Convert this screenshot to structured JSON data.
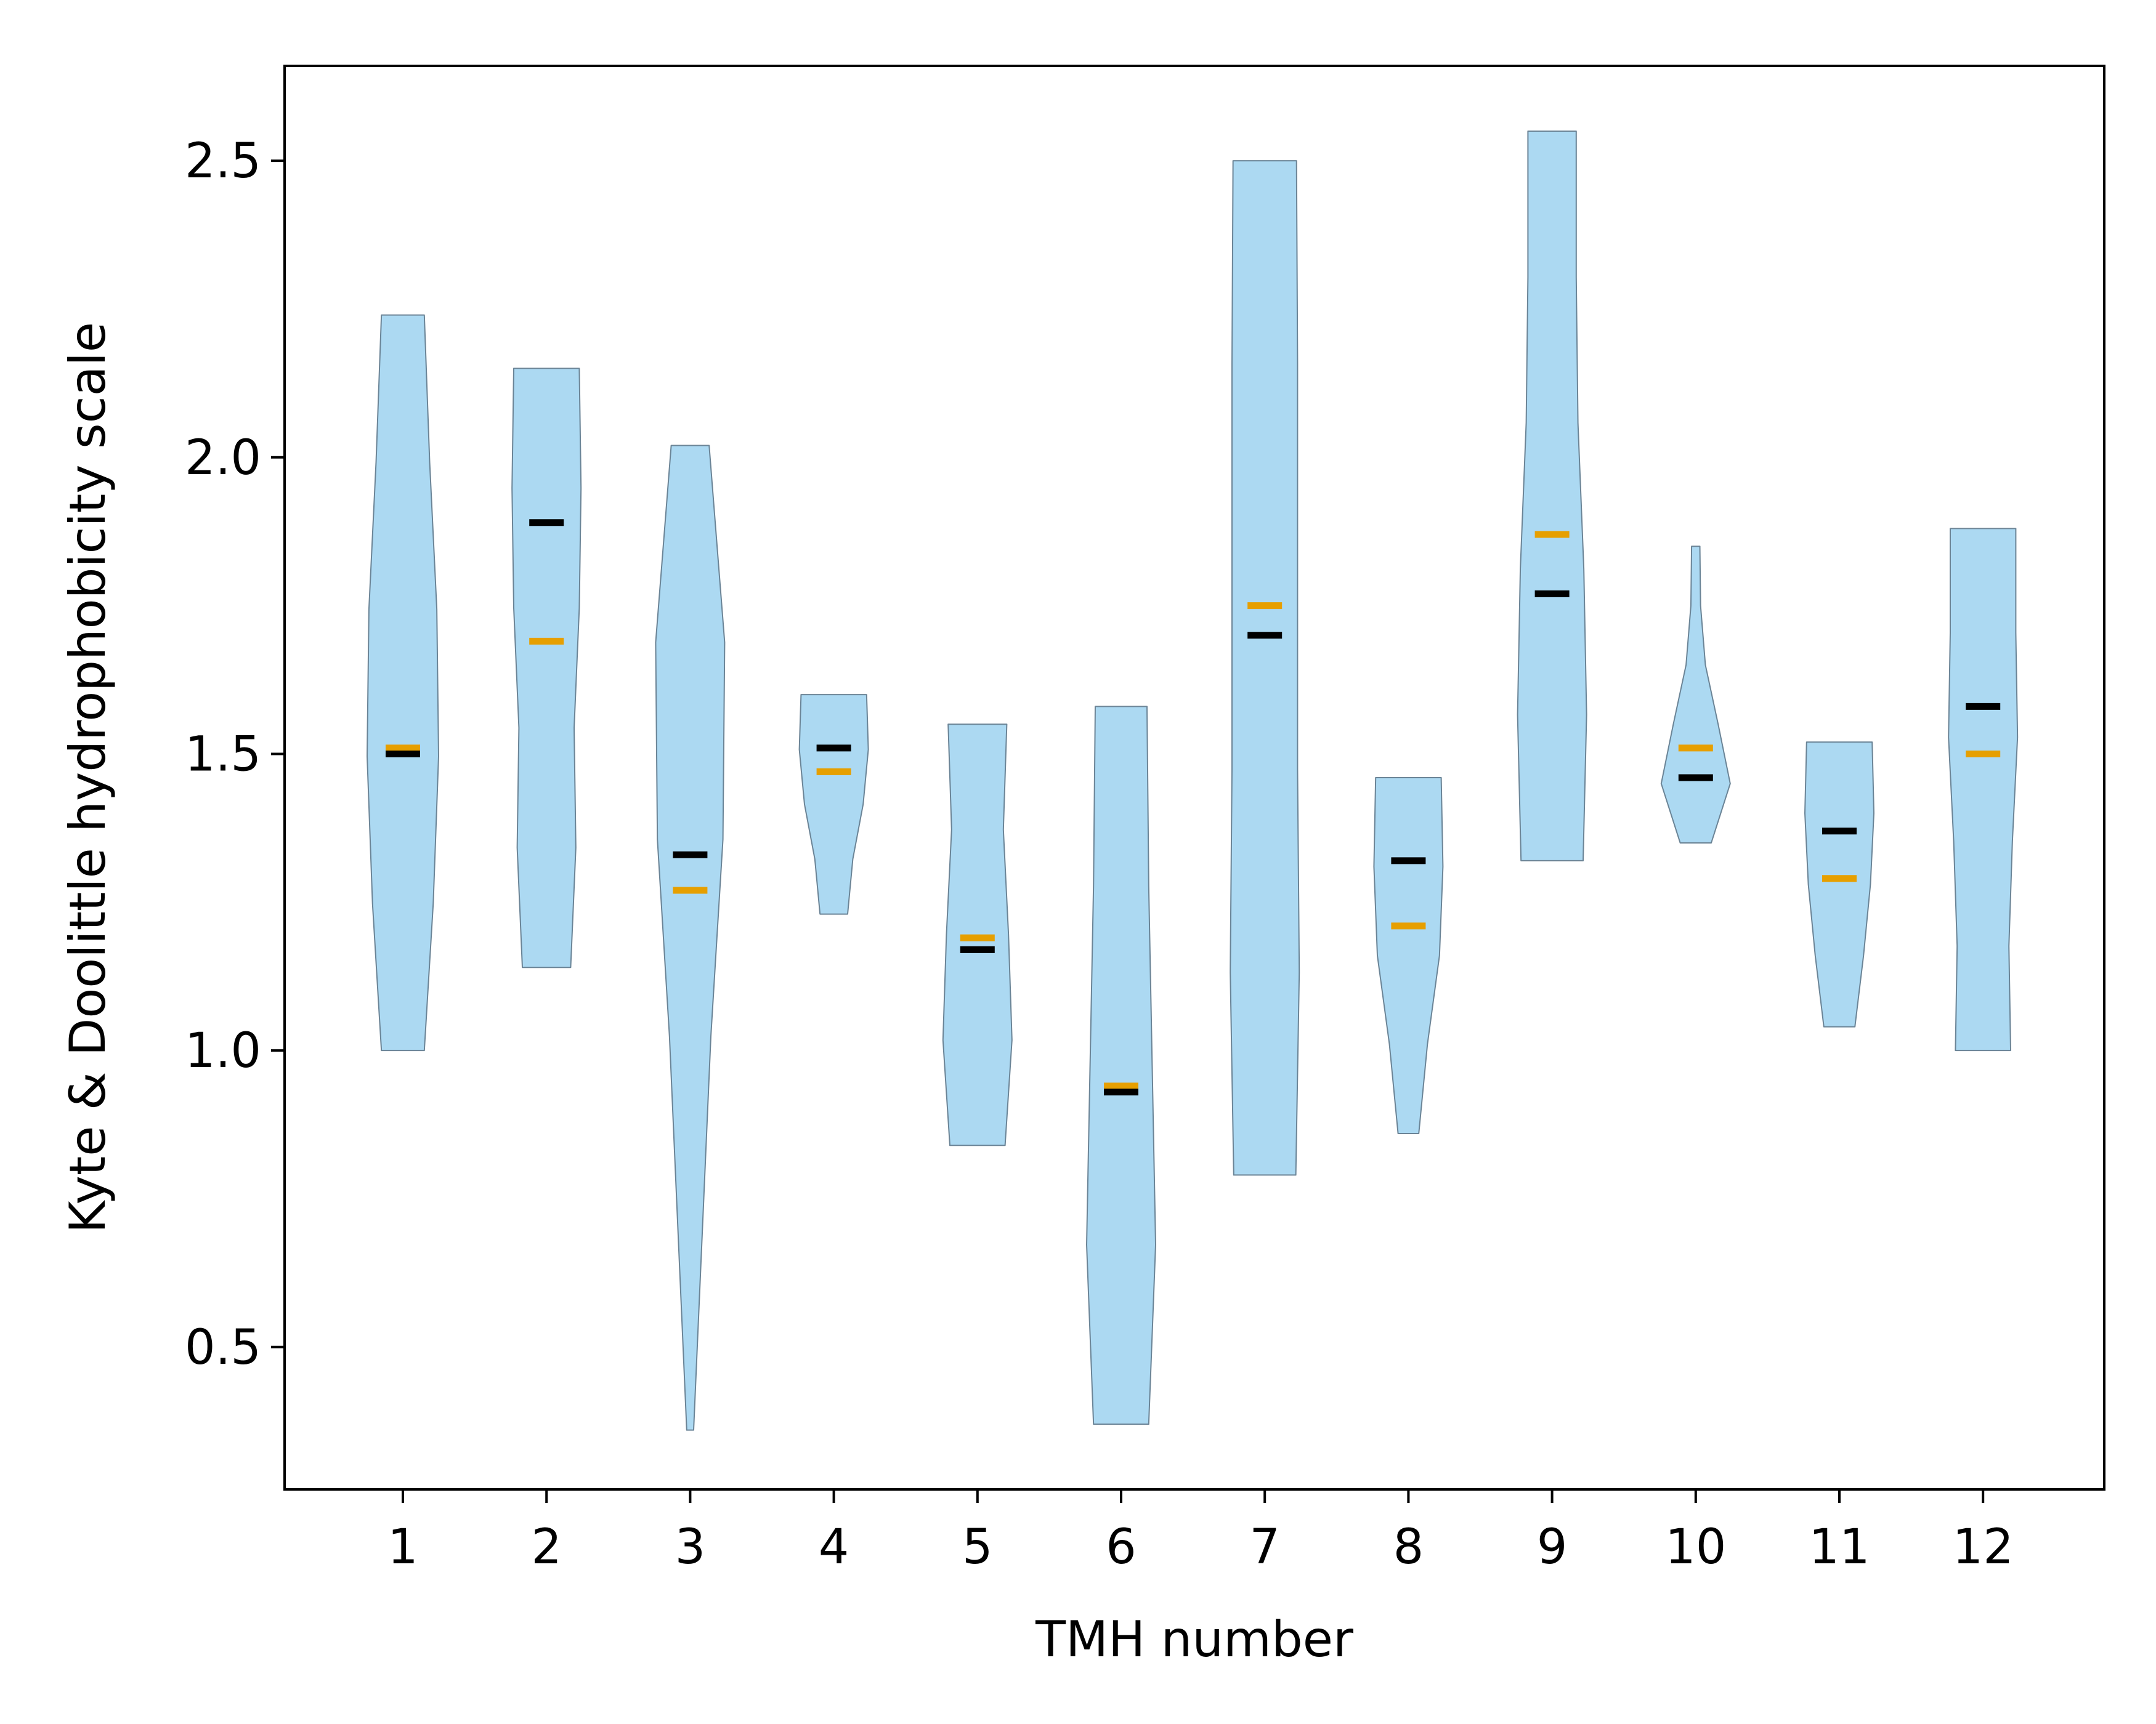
{
  "chart_data": {
    "type": "violin",
    "xlabel": "TMH number",
    "ylabel": "Kyte & Doolittle hydrophobicity scale",
    "categories": [
      "1",
      "2",
      "3",
      "4",
      "5",
      "6",
      "7",
      "8",
      "9",
      "10",
      "11",
      "12"
    ],
    "ylim": [
      0.26,
      2.66
    ],
    "yticks": [
      "0.5",
      "1.0",
      "1.5",
      "2.0",
      "2.5"
    ],
    "grid": false,
    "colors": {
      "violin_fill": "#acd9f2",
      "violin_edge": "#6b8496",
      "median": "#000000",
      "mean": "#e69f00"
    },
    "series": [
      {
        "values_min": [
          1.0,
          1.14,
          0.36,
          1.23,
          0.84,
          0.37,
          0.79,
          0.86,
          1.32,
          1.35,
          1.04,
          1.0
        ]
      },
      {
        "values_max": [
          2.24,
          2.15,
          2.02,
          1.6,
          1.55,
          1.58,
          2.5,
          1.46,
          2.55,
          1.85,
          1.52,
          1.88
        ]
      },
      {
        "medians": [
          1.5,
          1.89,
          1.33,
          1.51,
          1.17,
          0.93,
          1.7,
          1.32,
          1.77,
          1.46,
          1.37,
          1.58
        ]
      },
      {
        "means": [
          1.51,
          1.69,
          1.27,
          1.47,
          1.19,
          0.94,
          1.75,
          1.21,
          1.87,
          1.51,
          1.29,
          1.5
        ]
      }
    ]
  }
}
